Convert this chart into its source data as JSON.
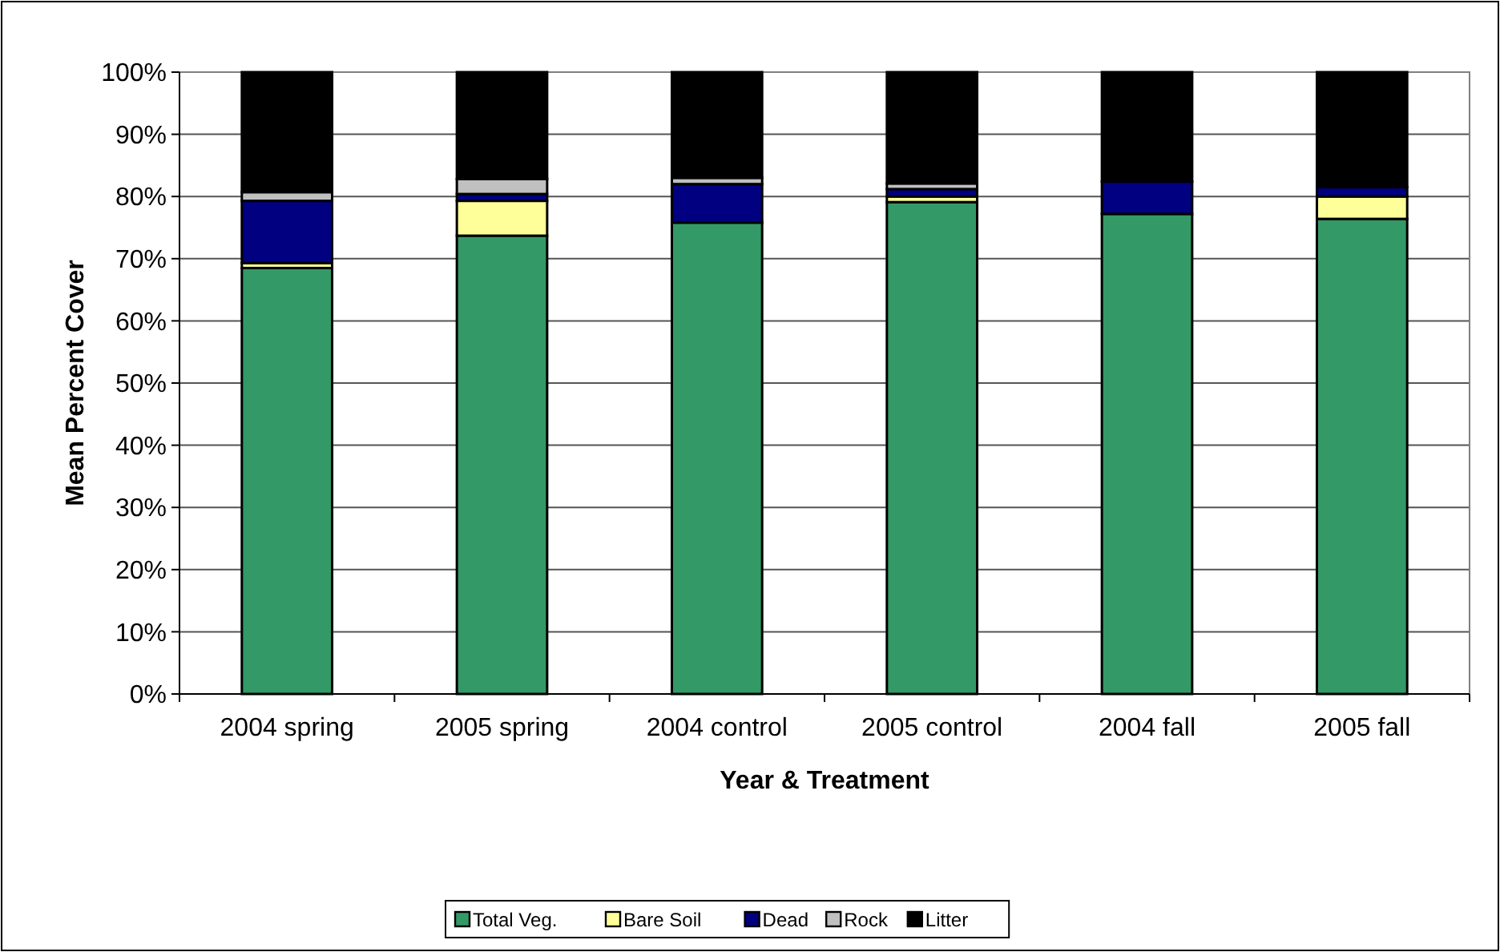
{
  "chart_data": {
    "type": "bar",
    "stacked": true,
    "xlabel": "Year & Treatment",
    "ylabel": "Mean Percent Cover",
    "categories": [
      "2004 spring",
      "2005 spring",
      "2004 control",
      "2005 control",
      "2004 fall",
      "2005 fall"
    ],
    "series": [
      {
        "name": "Total Veg.",
        "color": "#339966",
        "values": [
          68.5,
          73.7,
          75.8,
          79.1,
          77.2,
          76.4
        ]
      },
      {
        "name": "Bare Soil",
        "color": "#ffff99",
        "values": [
          0.8,
          5.6,
          null,
          0.9,
          null,
          3.6
        ]
      },
      {
        "name": "Dead",
        "color": "#000080",
        "values": [
          10,
          1.1,
          6.2,
          1.2,
          5.2,
          1.5
        ]
      },
      {
        "name": "Rock",
        "color": "#c0c0c0",
        "values": [
          1.4,
          2.4,
          1.0,
          0.9,
          0,
          0
        ]
      },
      {
        "name": "Litter",
        "color": "#000000",
        "values": [
          19.3,
          17.2,
          17.0,
          17.9,
          17.6,
          18.5
        ]
      }
    ],
    "ylim": [
      0,
      100
    ],
    "yticks": [
      {
        "value": 0,
        "label": "0%"
      },
      {
        "value": 10,
        "label": "10%"
      },
      {
        "value": 20,
        "label": "20%"
      },
      {
        "value": 30,
        "label": "30%"
      },
      {
        "value": 40,
        "label": "40%"
      },
      {
        "value": 50,
        "label": "50%"
      },
      {
        "value": 60,
        "label": "60%"
      },
      {
        "value": 70,
        "label": "70%"
      },
      {
        "value": 80,
        "label": "80%"
      },
      {
        "value": 90,
        "label": "90%"
      },
      {
        "value": 100,
        "label": "100%"
      }
    ],
    "grid": "y",
    "legend": "bottom"
  }
}
